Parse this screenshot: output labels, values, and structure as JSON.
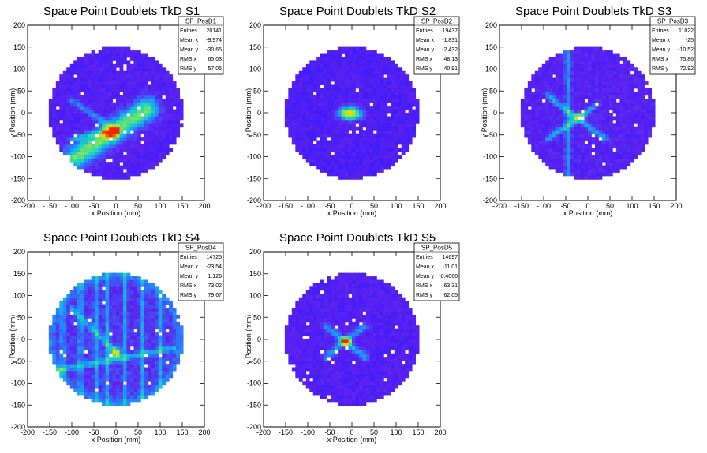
{
  "chart_data": [
    {
      "type": "heatmap",
      "title": "Space Point Doublets TkD S1",
      "xlabel": "x Position (mm)",
      "ylabel": "y Position (mm)",
      "xlim": [
        -200,
        200
      ],
      "ylim": [
        -200,
        200
      ],
      "xticks": [
        -200,
        -150,
        -100,
        -50,
        0,
        50,
        100,
        150,
        200
      ],
      "yticks": [
        -200,
        -150,
        -100,
        -50,
        0,
        50,
        100,
        150,
        200
      ],
      "stats": {
        "name": "SP_PosD1",
        "rows": [
          {
            "label": "Entries",
            "value": "20141"
          },
          {
            "label": "Mean x",
            "value": "-9.974"
          },
          {
            "label": "Mean y",
            "value": "-30.65"
          },
          {
            "label": "RMS x",
            "value": "65.03"
          },
          {
            "label": "RMS y",
            "value": "57.06"
          }
        ]
      }
    },
    {
      "type": "heatmap",
      "title": "Space Point Doublets TkD S2",
      "xlabel": "x Position (mm)",
      "ylabel": "y Position (mm)",
      "xlim": [
        -200,
        200
      ],
      "ylim": [
        -200,
        200
      ],
      "xticks": [
        -200,
        -150,
        -100,
        -50,
        0,
        50,
        100,
        150,
        200
      ],
      "yticks": [
        -200,
        -150,
        -100,
        -50,
        0,
        50,
        100,
        150,
        200
      ],
      "stats": {
        "name": "SP_PosD2",
        "rows": [
          {
            "label": "Entries",
            "value": "19437"
          },
          {
            "label": "Mean x",
            "value": "-1.831"
          },
          {
            "label": "Mean y",
            "value": "-2.432"
          },
          {
            "label": "RMS x",
            "value": "48.13"
          },
          {
            "label": "RMS y",
            "value": "40.91"
          }
        ]
      }
    },
    {
      "type": "heatmap",
      "title": "Space Point Doublets TkD S3",
      "xlabel": "x Position (mm)",
      "ylabel": "y Position (mm)",
      "xlim": [
        -200,
        200
      ],
      "ylim": [
        -200,
        200
      ],
      "xticks": [
        -200,
        -150,
        -100,
        -50,
        0,
        50,
        100,
        150,
        200
      ],
      "yticks": [
        -200,
        -150,
        -100,
        -50,
        0,
        50,
        100,
        150,
        200
      ],
      "stats": {
        "name": "SP_PosD3",
        "rows": [
          {
            "label": "Entries",
            "value": "11022"
          },
          {
            "label": "Mean x",
            "value": "-25"
          },
          {
            "label": "Mean y",
            "value": "-10.52"
          },
          {
            "label": "RMS x",
            "value": "75.86"
          },
          {
            "label": "RMS y",
            "value": "72.92"
          }
        ]
      }
    },
    {
      "type": "heatmap",
      "title": "Space Point Doublets TkD S4",
      "xlabel": "x Position (mm)",
      "ylabel": "y Position (mm)",
      "xlim": [
        -200,
        200
      ],
      "ylim": [
        -200,
        200
      ],
      "xticks": [
        -200,
        -150,
        -100,
        -50,
        0,
        50,
        100,
        150,
        200
      ],
      "yticks": [
        -200,
        -150,
        -100,
        -50,
        0,
        50,
        100,
        150,
        200
      ],
      "stats": {
        "name": "SP_PosD4",
        "rows": [
          {
            "label": "Entries",
            "value": "14725"
          },
          {
            "label": "Mean x",
            "value": "-23.54"
          },
          {
            "label": "Mean y",
            "value": "1.126"
          },
          {
            "label": "RMS x",
            "value": "73.02"
          },
          {
            "label": "RMS y",
            "value": "79.67"
          }
        ]
      }
    },
    {
      "type": "heatmap",
      "title": "Space Point Doublets TkD S5",
      "xlabel": "x Position (mm)",
      "ylabel": "y Position (mm)",
      "xlim": [
        -200,
        200
      ],
      "ylim": [
        -200,
        200
      ],
      "xticks": [
        -200,
        -150,
        -100,
        -50,
        0,
        50,
        100,
        150,
        200
      ],
      "yticks": [
        -200,
        -150,
        -100,
        -50,
        0,
        50,
        100,
        150,
        200
      ],
      "stats": {
        "name": "SP_PosD5",
        "rows": [
          {
            "label": "Entries",
            "value": "14697"
          },
          {
            "label": "Mean x",
            "value": "-11.01"
          },
          {
            "label": "Mean y",
            "value": "-0.4066"
          },
          {
            "label": "RMS x",
            "value": "63.31"
          },
          {
            "label": "RMS y",
            "value": "62.05"
          }
        ]
      }
    }
  ],
  "colors": {
    "background": "#ffffff",
    "frame": "#000000",
    "low": "#3b1cff",
    "base": "#5a22ee",
    "mid": "#1f8fff",
    "high": "#18d9c0",
    "peak": "#e8d800",
    "max": "#ff2200"
  }
}
